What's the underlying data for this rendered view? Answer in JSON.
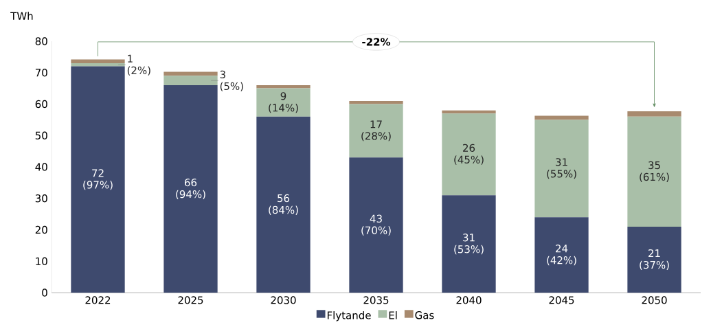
{
  "chart_data": {
    "type": "bar",
    "stacked": true,
    "ylabel": "TWh",
    "categories": [
      "2022",
      "2025",
      "2030",
      "2035",
      "2040",
      "2045",
      "2050"
    ],
    "series": [
      {
        "name": "Flytande",
        "color": "#3e4a6e",
        "values": [
          72,
          66,
          56,
          43,
          31,
          24,
          21
        ],
        "value_labels": [
          "72 (97%)",
          "66 (94%)",
          "56 (84%)",
          "43 (70%)",
          "31 (53%)",
          "24 (42%)",
          "21 (37%)"
        ]
      },
      {
        "name": "El",
        "color": "#a9bfa8",
        "values": [
          1,
          3,
          9,
          17,
          26,
          31,
          35
        ],
        "value_labels": [
          "1 (2%)",
          "3 (5%)",
          "9 (14%)",
          "17 (28%)",
          "26 (45%)",
          "31 (55%)",
          "35 (61%)"
        ]
      },
      {
        "name": "Gas",
        "color": "#a88a6e",
        "values": [
          1.2,
          1.3,
          1,
          1,
          1,
          1.3,
          1.7
        ]
      }
    ],
    "ylim": [
      0,
      80
    ],
    "yticks": [
      0,
      10,
      20,
      30,
      40,
      50,
      60,
      70,
      80
    ],
    "annotations": [
      "-22%"
    ],
    "legend": "bottom",
    "grid": false
  }
}
